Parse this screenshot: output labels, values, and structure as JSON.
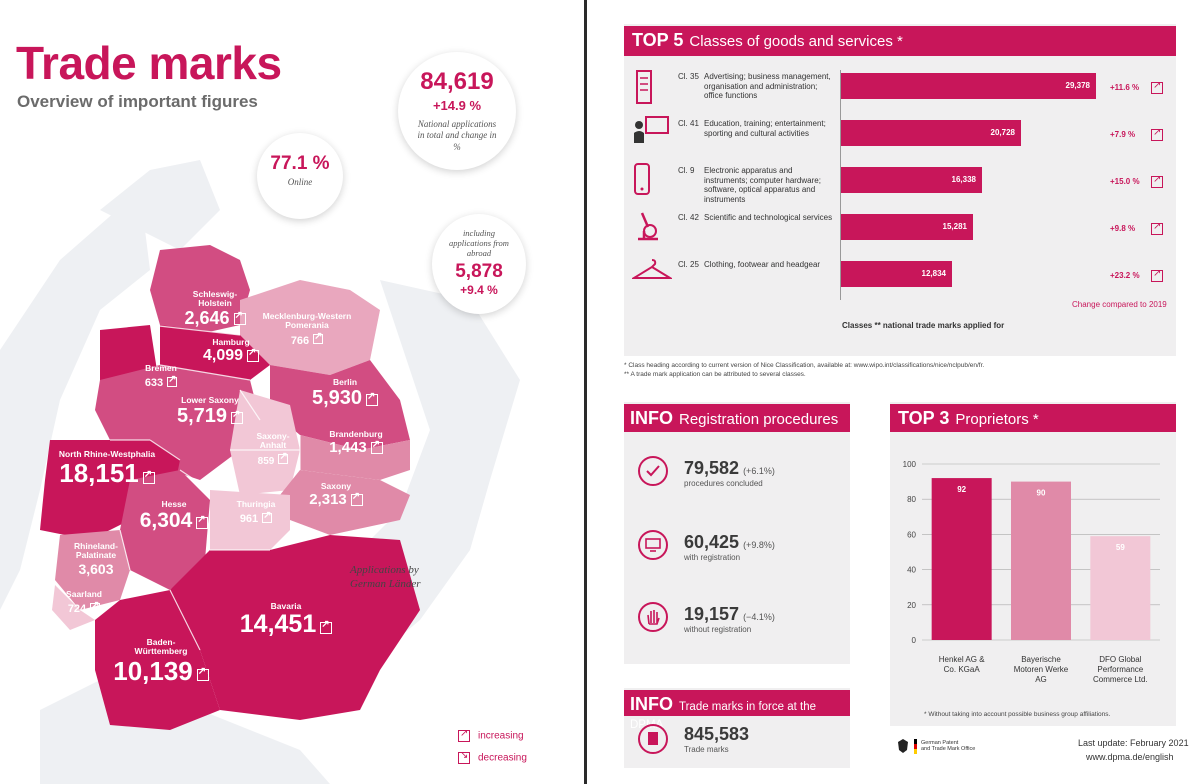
{
  "left": {
    "title": "Trade marks",
    "subtitle": "Overview of important figures",
    "bubbles": {
      "total": {
        "value": "84,619",
        "change": "+14.9 %",
        "note": "National applications in total and change in %"
      },
      "online": {
        "value": "77.1 %",
        "note": "Online"
      },
      "abroad": {
        "note": "including applications from abroad",
        "value": "5,878",
        "change": "+9.4 %"
      }
    },
    "map_caption": "Applications by German Länder",
    "states": [
      {
        "name": "Schleswig-Holstein",
        "value": "2,646"
      },
      {
        "name": "Hamburg",
        "value": "4,099"
      },
      {
        "name": "Mecklenburg-Western Pomerania",
        "value": "766"
      },
      {
        "name": "Bremen",
        "value": "633"
      },
      {
        "name": "Lower Saxony",
        "value": "5,719"
      },
      {
        "name": "Berlin",
        "value": "5,930"
      },
      {
        "name": "Brandenburg",
        "value": "1,443"
      },
      {
        "name": "Saxony-Anhalt",
        "value": "859"
      },
      {
        "name": "North Rhine-Westphalia",
        "value": "18,151"
      },
      {
        "name": "Saxony",
        "value": "2,313"
      },
      {
        "name": "Hesse",
        "value": "6,304"
      },
      {
        "name": "Thuringia",
        "value": "961"
      },
      {
        "name": "Rhineland-Palatinate",
        "value": "3,603"
      },
      {
        "name": "Saarland",
        "value": "724"
      },
      {
        "name": "Bavaria",
        "value": "14,451"
      },
      {
        "name": "Baden-Württemberg",
        "value": "10,139"
      }
    ],
    "legend": {
      "increasing": "increasing",
      "decreasing": "decreasing"
    }
  },
  "top5": {
    "heading_strong": "TOP 5",
    "heading_rest": "Classes of goods and services *",
    "rows": [
      {
        "icon": "poster-column-icon",
        "cls": "Cl. 35",
        "desc": "Advertising; business management, organisation and administration; office functions",
        "value": 29378,
        "label": "29,378",
        "change": "+11.6 %"
      },
      {
        "icon": "presentation-icon",
        "cls": "Cl. 41",
        "desc": "Education, training; entertainment; sporting and cultural activities",
        "value": 20728,
        "label": "20,728",
        "change": "+7.9 %"
      },
      {
        "icon": "phone-icon",
        "cls": "Cl. 9",
        "desc": "Electronic apparatus and instruments; computer hardware; software, optical apparatus and instruments",
        "value": 16338,
        "label": "16,338",
        "change": "+15.0 %"
      },
      {
        "icon": "microscope-icon",
        "cls": "Cl. 42",
        "desc": "Scientific and technological services",
        "value": 15281,
        "label": "15,281",
        "change": "+9.8 %"
      },
      {
        "icon": "hanger-icon",
        "cls": "Cl. 25",
        "desc": "Clothing, footwear and headgear",
        "value": 12834,
        "label": "12,834",
        "change": "+23.2 %"
      }
    ],
    "change_note": "Change compared to 2019",
    "axis_caption": "Classes ** national trade marks applied for",
    "footnote1": "* Class heading according to current version of Nice Classification, available at: www.wipo.int/classifications/nice/nclpub/en/fr.",
    "footnote2": "** A trade mark application can be attributed to several classes."
  },
  "info_reg": {
    "heading_strong": "INFO",
    "heading_rest": "Registration procedures",
    "items": [
      {
        "icon": "checkmark-icon",
        "value": "79,582",
        "change": "(+6.1%)",
        "sub": "procedures concluded"
      },
      {
        "icon": "monitor-icon",
        "value": "60,425",
        "change": "(+9.8%)",
        "sub": "with registration"
      },
      {
        "icon": "hand-stop-icon",
        "value": "19,157",
        "change": "(−4.1%)",
        "sub": "without registration"
      }
    ]
  },
  "info_force": {
    "heading_strong": "INFO",
    "heading_rest": "Trade marks in force at the DPMA",
    "value": "845,583",
    "sub": "Trade marks"
  },
  "top3": {
    "heading_strong": "TOP 3",
    "heading_rest": "Proprietors *",
    "note": "* Without taking into account possible business group affiliations.",
    "chart_data": {
      "type": "bar",
      "categories": [
        "Henkel AG & Co. KGaA",
        "Bayerische Motoren Werke AG",
        "DFO Global Performance Commerce Ltd."
      ],
      "values": [
        92,
        90,
        59
      ],
      "colors": [
        "#c8165a",
        "#e08aa8",
        "#f2c7d6"
      ],
      "ylim": [
        0,
        100
      ],
      "yticks": [
        "0",
        "20",
        "40",
        "60",
        "80",
        "100"
      ]
    }
  },
  "footer": {
    "office_line1": "German Patent",
    "office_line2": "and Trade Mark Office",
    "last_update": "Last update: February 2021",
    "url": "www.dpma.de/english"
  },
  "colors": {
    "accent": "#c8165a",
    "mid": "#e08aa8",
    "light": "#f2c7d6",
    "panel": "#f0eff0"
  }
}
